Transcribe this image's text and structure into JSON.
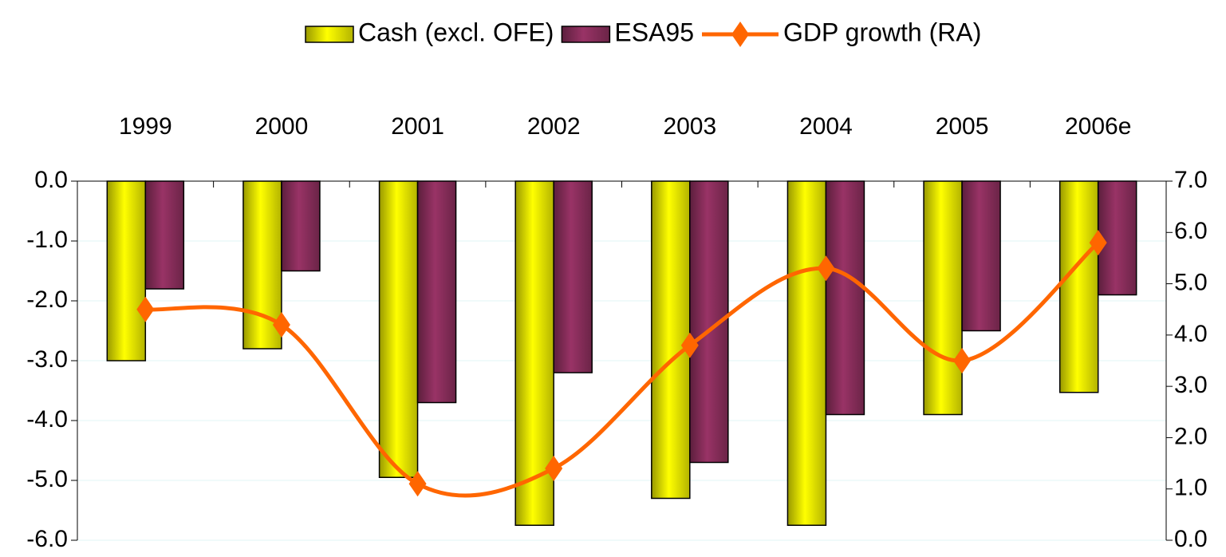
{
  "chart_data": {
    "type": "bar",
    "categories": [
      "1999",
      "2000",
      "2001",
      "2002",
      "2003",
      "2004",
      "2005",
      "2006e"
    ],
    "series": [
      {
        "name": "Cash (excl. OFE)",
        "color": "#ffff00",
        "values": [
          -3.0,
          -2.8,
          -4.95,
          -5.75,
          -5.3,
          -5.75,
          -3.9,
          -3.53
        ]
      },
      {
        "name": "ESA95",
        "color": "#993366",
        "values": [
          -1.8,
          -1.5,
          -3.7,
          -3.2,
          -4.7,
          -3.9,
          -2.5,
          -1.9
        ]
      },
      {
        "name": "GDP growth (RA)",
        "color": "#ff6600",
        "type": "line",
        "axis": "y2",
        "values": [
          4.5,
          4.2,
          1.1,
          1.4,
          3.8,
          5.3,
          3.5,
          5.8
        ]
      }
    ],
    "ylim": [
      -6,
      0
    ],
    "yticks": [
      {
        "value": 0,
        "label": "0.0"
      },
      {
        "value": -1,
        "label": "-1.0"
      },
      {
        "value": -2,
        "label": "-2.0"
      },
      {
        "value": -3,
        "label": "-3.0"
      },
      {
        "value": -4,
        "label": "-4.0"
      },
      {
        "value": -5,
        "label": "-5.0"
      },
      {
        "value": -6,
        "label": "-6.0"
      }
    ],
    "y2lim": [
      0,
      7
    ],
    "y2ticks": [
      {
        "value": 7,
        "label": "7.0"
      },
      {
        "value": 6,
        "label": "6.0"
      },
      {
        "value": 5,
        "label": "5.0"
      },
      {
        "value": 4,
        "label": "4.0"
      },
      {
        "value": 3,
        "label": "3.0"
      },
      {
        "value": 2,
        "label": "2.0"
      },
      {
        "value": 1,
        "label": "1.0"
      },
      {
        "value": 0,
        "label": "0.0"
      }
    ],
    "grid": true,
    "legend": "top"
  }
}
